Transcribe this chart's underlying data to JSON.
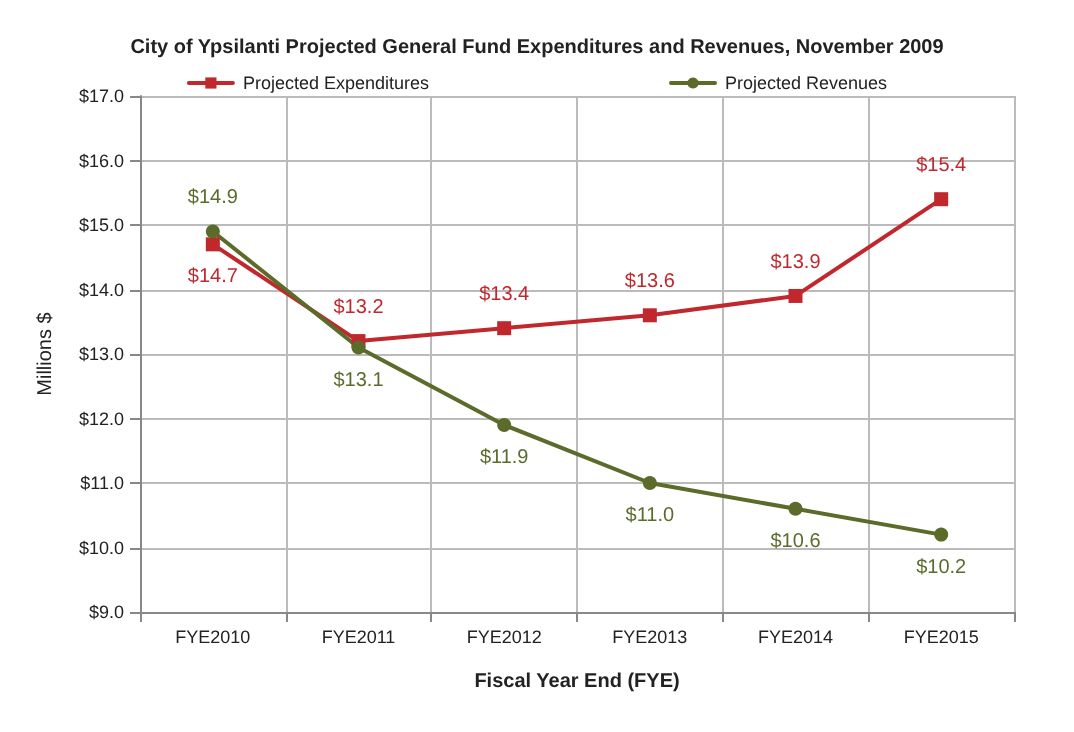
{
  "chart_data": {
    "type": "line",
    "title": "City of Ypsilanti Projected General Fund Expenditures and Revenues, November 2009",
    "xlabel": "Fiscal Year End (FYE)",
    "ylabel": "Millions $",
    "categories": [
      "FYE2010",
      "FYE2011",
      "FYE2012",
      "FYE2013",
      "FYE2014",
      "FYE2015"
    ],
    "series": [
      {
        "name": "Projected Expenditures",
        "color": "#c0282d",
        "marker": "square",
        "values": [
          14.7,
          13.2,
          13.4,
          13.6,
          13.9,
          15.4
        ],
        "value_labels": [
          "$14.7",
          "$13.2",
          "$13.4",
          "$13.6",
          "$13.9",
          "$15.4"
        ]
      },
      {
        "name": "Projected Revenues",
        "color": "#5a6b2a",
        "marker": "circle",
        "values": [
          14.9,
          13.1,
          11.9,
          11.0,
          10.6,
          10.2
        ],
        "value_labels": [
          "$14.9",
          "$13.1",
          "$11.9",
          "$11.0",
          "$10.6",
          "$10.2"
        ]
      }
    ],
    "ylim": [
      9,
      17
    ],
    "yticks": [
      {
        "value": 9,
        "label": "$9.0"
      },
      {
        "value": 10,
        "label": "$10.0"
      },
      {
        "value": 11,
        "label": "$11.0"
      },
      {
        "value": 12,
        "label": "$12.0"
      },
      {
        "value": 13,
        "label": "$13.0"
      },
      {
        "value": 14,
        "label": "$14.0"
      },
      {
        "value": 15,
        "label": "$15.0"
      },
      {
        "value": 16,
        "label": "$16.0"
      },
      {
        "value": 17,
        "label": "$17.0"
      }
    ],
    "grid": true,
    "legend": "top"
  }
}
